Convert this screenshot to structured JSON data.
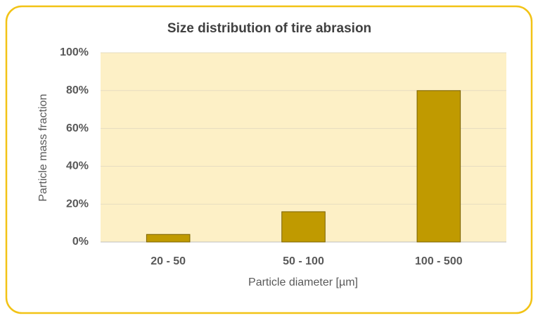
{
  "chart_data": {
    "type": "bar",
    "title": "Size distribution of tire abrasion",
    "x_label": "Particle diameter [µm]",
    "y_label": "Particle mass fraction",
    "categories": [
      "20 - 50",
      "50 - 100",
      "100 - 500"
    ],
    "values": [
      4,
      16,
      80
    ],
    "color": "#c09a00",
    "ylim": [
      0,
      100
    ],
    "yticks": [
      {
        "value": 0,
        "label": "0%"
      },
      {
        "value": 20,
        "label": "20%"
      },
      {
        "value": 40,
        "label": "40%"
      },
      {
        "value": 60,
        "label": "60%"
      },
      {
        "value": 80,
        "label": "80%"
      },
      {
        "value": 100,
        "label": "100%"
      }
    ],
    "grid": true
  }
}
